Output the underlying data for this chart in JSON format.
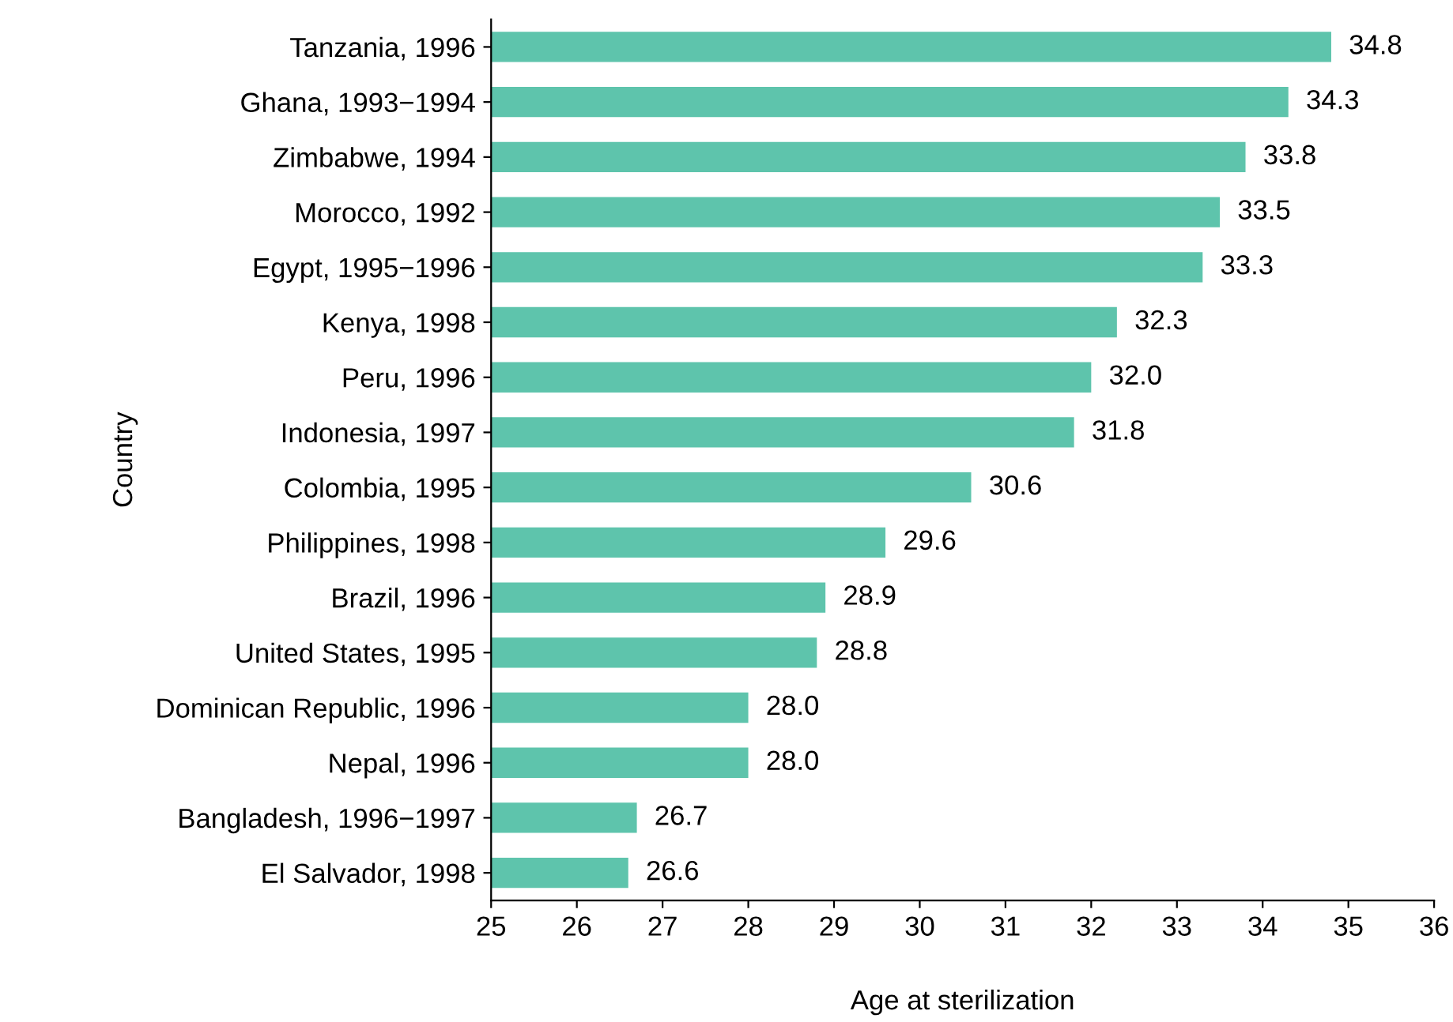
{
  "chart_data": {
    "type": "bar",
    "orientation": "horizontal",
    "xlabel": "Age at sterilization",
    "ylabel": "Country",
    "categories": [
      "Tanzania, 1996",
      "Ghana, 1993−1994",
      "Zimbabwe, 1994",
      "Morocco, 1992",
      "Egypt, 1995−1996",
      "Kenya, 1998",
      "Peru, 1996",
      "Indonesia, 1997",
      "Colombia, 1995",
      "Philippines, 1998",
      "Brazil, 1996",
      "United States, 1995",
      "Dominican Republic, 1996",
      "Nepal, 1996",
      "Bangladesh, 1996−1997",
      "El Salvador, 1998"
    ],
    "values": [
      34.8,
      34.3,
      33.8,
      33.5,
      33.3,
      32.3,
      32.0,
      31.8,
      30.6,
      29.6,
      28.9,
      28.8,
      28.0,
      28.0,
      26.7,
      26.6
    ],
    "value_labels": [
      "34.8",
      "34.3",
      "33.8",
      "33.5",
      "33.3",
      "32.3",
      "32.0",
      "31.8",
      "30.6",
      "29.6",
      "28.9",
      "28.8",
      "28.0",
      "28.0",
      "26.7",
      "26.6"
    ],
    "color": "#5ec4ac",
    "xlim": [
      25,
      36
    ],
    "xticks": [
      25,
      26,
      27,
      28,
      29,
      30,
      31,
      32,
      33,
      34,
      35,
      36
    ],
    "grid": false,
    "legend": false
  }
}
